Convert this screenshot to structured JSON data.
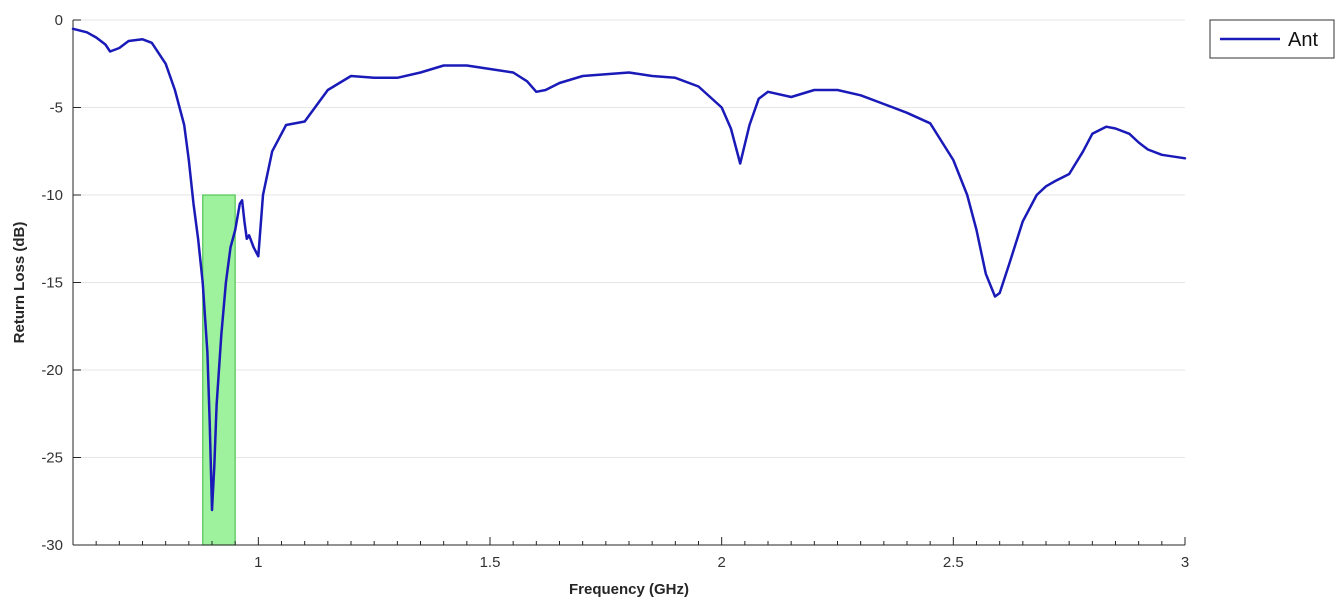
{
  "chart_data": {
    "type": "line",
    "title": "",
    "xlabel": "Frequency (GHz)",
    "ylabel": "Return Loss (dB)",
    "xlim": [
      0.6,
      3.0
    ],
    "ylim": [
      -30,
      0
    ],
    "grid": "horizontal",
    "legend_position": "top-right",
    "x_ticks": [
      1,
      1.5,
      2,
      2.5,
      3
    ],
    "x_tick_labels": [
      "1",
      "1.5",
      "2",
      "2.5",
      "3"
    ],
    "y_ticks": [
      0,
      -5,
      -10,
      -15,
      -20,
      -25,
      -30
    ],
    "y_tick_labels": [
      "0",
      "-5",
      "-10",
      "-15",
      "-20",
      "-25",
      "-30"
    ],
    "band_highlight": {
      "x_start": 0.88,
      "x_end": 0.95,
      "y_top": -10,
      "y_bottom": -30,
      "color": "#9ef29e",
      "edge_color": "#55c455"
    },
    "series": [
      {
        "name": "Ant",
        "color": "#1a1ab8",
        "x": [
          0.6,
          0.63,
          0.65,
          0.67,
          0.68,
          0.7,
          0.72,
          0.75,
          0.77,
          0.8,
          0.82,
          0.84,
          0.85,
          0.86,
          0.87,
          0.88,
          0.89,
          0.895,
          0.9,
          0.905,
          0.91,
          0.92,
          0.93,
          0.94,
          0.95,
          0.96,
          0.965,
          0.97,
          0.975,
          0.98,
          0.99,
          1.0,
          1.01,
          1.03,
          1.06,
          1.1,
          1.15,
          1.2,
          1.25,
          1.3,
          1.35,
          1.4,
          1.45,
          1.5,
          1.55,
          1.58,
          1.6,
          1.62,
          1.65,
          1.7,
          1.75,
          1.8,
          1.85,
          1.9,
          1.95,
          2.0,
          2.02,
          2.04,
          2.06,
          2.08,
          2.1,
          2.15,
          2.2,
          2.25,
          2.3,
          2.35,
          2.4,
          2.45,
          2.5,
          2.53,
          2.55,
          2.57,
          2.59,
          2.6,
          2.62,
          2.65,
          2.68,
          2.7,
          2.72,
          2.75,
          2.78,
          2.8,
          2.83,
          2.85,
          2.88,
          2.9,
          2.92,
          2.95,
          3.0
        ],
        "y": [
          -0.5,
          -0.7,
          -1.0,
          -1.4,
          -1.8,
          -1.6,
          -1.2,
          -1.1,
          -1.3,
          -2.5,
          -4.0,
          -6.0,
          -8.0,
          -10.5,
          -12.5,
          -15.0,
          -19.0,
          -23.0,
          -28.0,
          -25.5,
          -22.0,
          -18.0,
          -15.0,
          -13.0,
          -12.0,
          -10.5,
          -10.3,
          -11.5,
          -12.5,
          -12.3,
          -13.0,
          -13.5,
          -10.0,
          -7.5,
          -6.0,
          -5.8,
          -4.0,
          -3.2,
          -3.3,
          -3.3,
          -3.0,
          -2.6,
          -2.6,
          -2.8,
          -3.0,
          -3.5,
          -4.1,
          -4.0,
          -3.6,
          -3.2,
          -3.1,
          -3.0,
          -3.2,
          -3.3,
          -3.8,
          -5.0,
          -6.2,
          -8.2,
          -6.0,
          -4.5,
          -4.1,
          -4.4,
          -4.0,
          -4.0,
          -4.3,
          -4.8,
          -5.3,
          -5.9,
          -8.0,
          -10.0,
          -12.0,
          -14.5,
          -15.8,
          -15.6,
          -14.0,
          -11.5,
          -10.0,
          -9.5,
          -9.2,
          -8.8,
          -7.5,
          -6.5,
          -6.1,
          -6.2,
          -6.5,
          -7.0,
          -7.4,
          -7.7,
          -7.9
        ]
      }
    ]
  }
}
